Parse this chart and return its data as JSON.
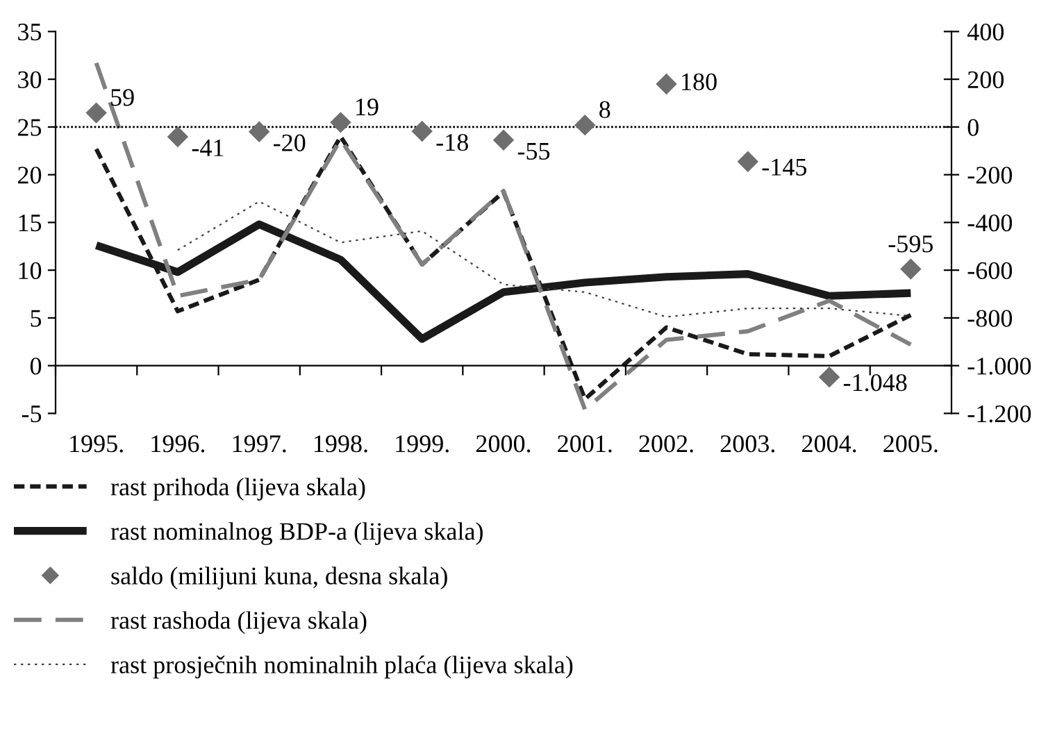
{
  "chart_data": {
    "type": "line",
    "categories": [
      "1995.",
      "1996.",
      "1997.",
      "1998.",
      "1999.",
      "2000.",
      "2001.",
      "2002.",
      "2003.",
      "2004.",
      "2005."
    ],
    "ylim": [
      -5,
      35
    ],
    "yticks": [
      -5,
      0,
      5,
      10,
      15,
      20,
      25,
      30,
      35
    ],
    "y2lim": [
      -1200,
      400
    ],
    "y2ticks": [
      {
        "value": -1200,
        "label": "-1.200"
      },
      {
        "value": -1000,
        "label": "-1.000"
      },
      -800,
      -600,
      -400,
      -200,
      0,
      200,
      400
    ],
    "legend": "bottom left",
    "ref_lines": [
      {
        "axis": "y2",
        "value": 0,
        "color": "#000000",
        "line_style": "dotted"
      }
    ],
    "series": [
      {
        "name": "rast prihoda (lijeva skala)",
        "color": "#1a1a1a",
        "line_style": "dashed",
        "values": [
          22.7,
          5.7,
          9.0,
          24.0,
          10.6,
          18.2,
          -3.5,
          4.0,
          1.2,
          1.0,
          5.3
        ]
      },
      {
        "name": "rast nominalnog BDP-a (lijeva skala)",
        "color": "#1a1a1a",
        "line_style": "solid",
        "values": [
          12.6,
          9.8,
          14.8,
          11.1,
          2.8,
          7.7,
          8.7,
          9.3,
          9.6,
          7.3,
          7.6
        ]
      },
      {
        "name": "saldo (milijuni kuna, desna skala)",
        "type": "scatter",
        "axis": "y2",
        "marker": "diamond",
        "color": "#6e6e6e",
        "values": [
          59,
          -41,
          -20,
          19,
          -18,
          -55,
          8,
          180,
          -145,
          -1048,
          -595
        ],
        "value_labels": [
          "59",
          "-41",
          "-20",
          "19",
          "-18",
          "-55",
          "8",
          "180",
          "-145",
          "-1.048",
          "-595"
        ]
      },
      {
        "name": "rast rashoda (lijeva skala)",
        "color": "#808080",
        "line_style": "dashed",
        "values": [
          31.7,
          7.3,
          9.0,
          23.7,
          10.6,
          18.3,
          -4.6,
          2.7,
          3.6,
          6.8,
          2.2
        ]
      },
      {
        "name": "rast prosječnih nominalnih plaća (lijeva skala)",
        "color": "#404040",
        "line_style": "dotted",
        "values": [
          null,
          12.1,
          17.2,
          12.9,
          14.1,
          8.5,
          7.7,
          5.1,
          6.0,
          6.0,
          5.2
        ]
      }
    ]
  }
}
